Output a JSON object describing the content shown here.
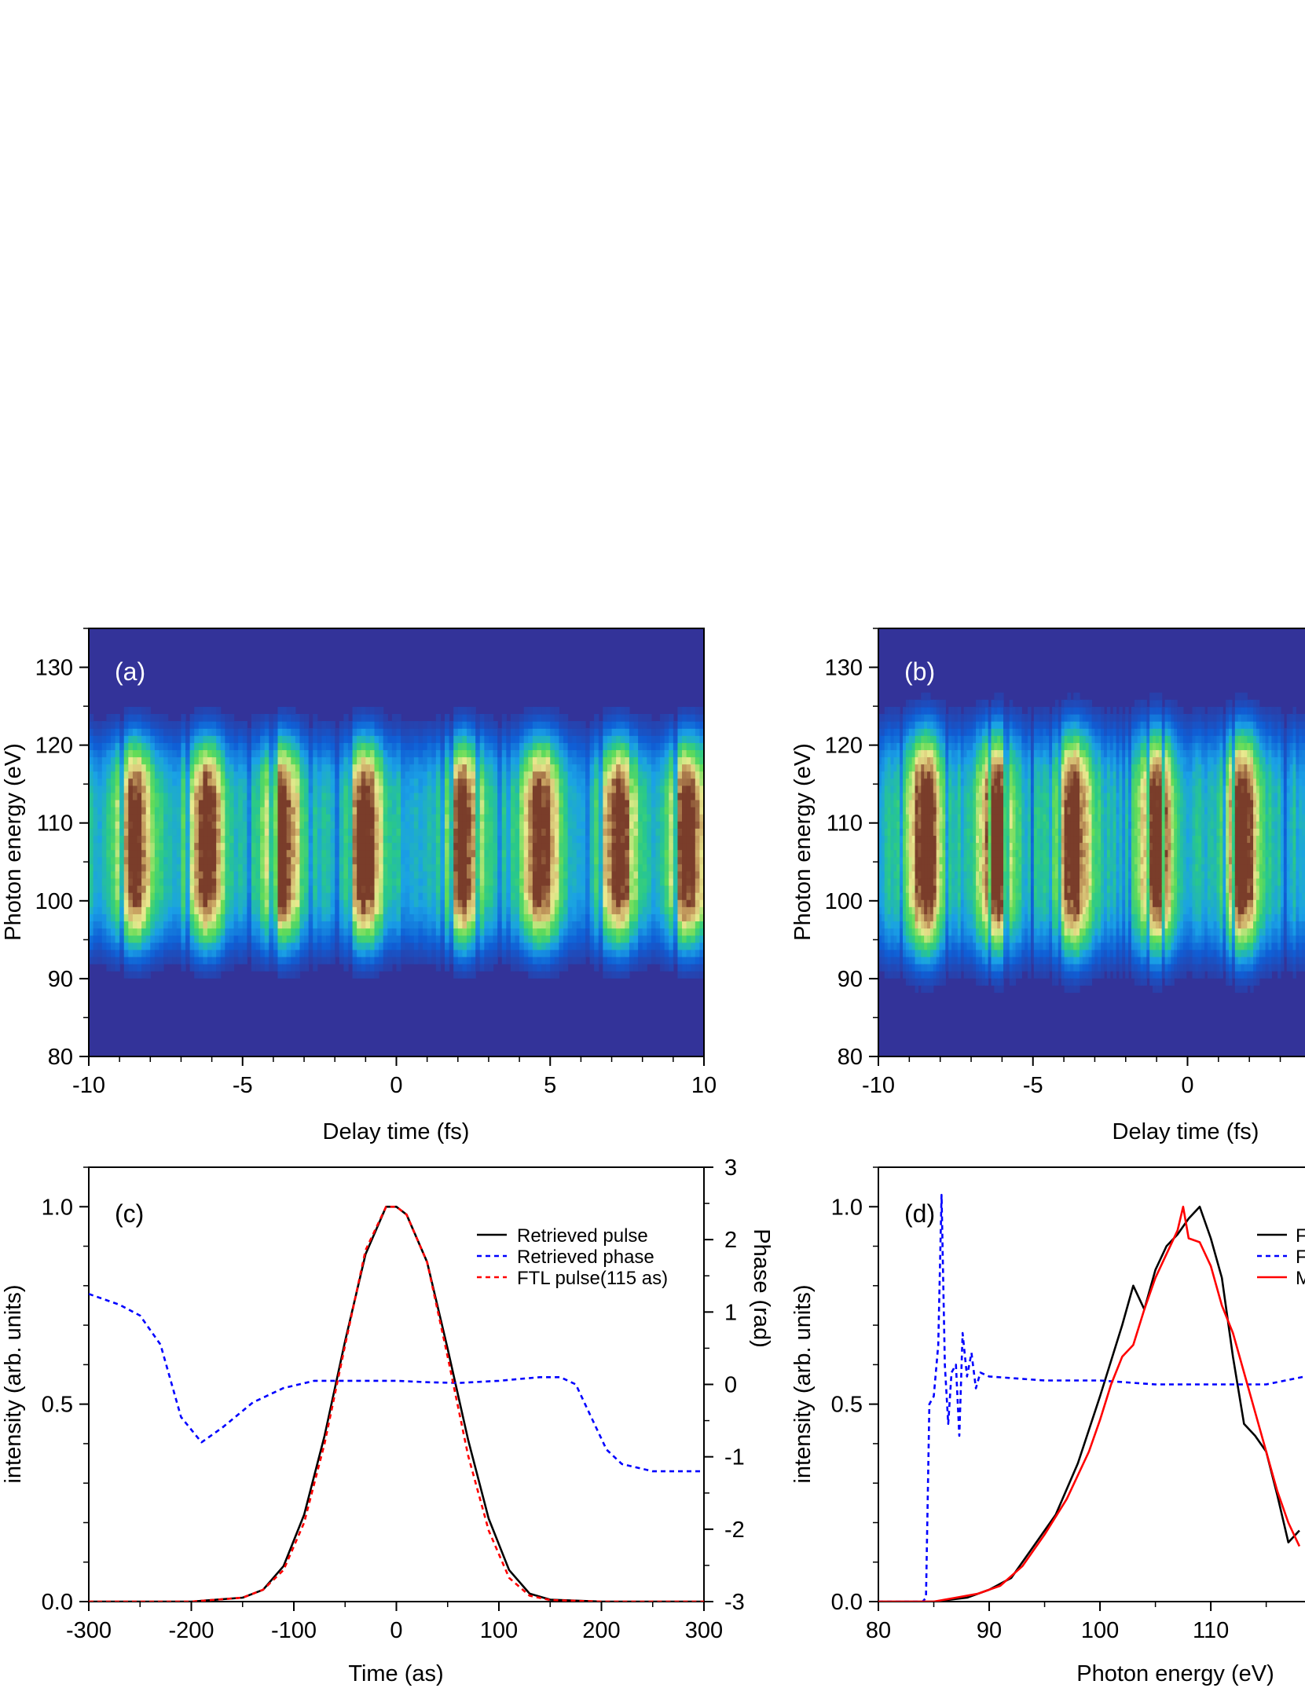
{
  "colors": {
    "bg": "#333399",
    "retrieved_pulse": "#000000",
    "retrieved_phase": "#0000ff",
    "ftl_pulse": "#ff0000",
    "measured": "#ff0000"
  },
  "chart_data": [
    {
      "id": "a",
      "type": "heatmap",
      "panel_label": "(a)",
      "xlabel": "Delay time (fs)",
      "ylabel": "Photon energy (eV)",
      "xlim": [
        -10,
        10
      ],
      "ylim": [
        80,
        135
      ],
      "xticks": [
        -10,
        -5,
        0,
        5,
        10
      ],
      "yticks": [
        80,
        90,
        100,
        110,
        120,
        130
      ],
      "colormap": [
        "#333399",
        "#0f5fd6",
        "#1aa1e6",
        "#29c98a",
        "#63dc57",
        "#e9ea8f",
        "#c7a060",
        "#7a3d2a"
      ],
      "band_center_eV": 107.5,
      "band_halfwidth_eV": 13,
      "strong_peaks_fs": [
        -8.5,
        -6.2,
        -3.7,
        -1.0,
        2.2,
        4.7,
        7.2,
        9.5
      ]
    },
    {
      "id": "b",
      "type": "heatmap",
      "panel_label": "(b)",
      "xlabel": "Delay time (fs)",
      "ylabel": "Photon energy (eV)",
      "xlim": [
        -10,
        3.8
      ],
      "ylim": [
        80,
        135
      ],
      "xticks": [
        -10,
        -5,
        0
      ],
      "yticks": [
        80,
        90,
        100,
        110,
        120,
        130
      ],
      "band_center_eV": 107.5,
      "band_halfwidth_eV": 14,
      "strong_peaks_fs": [
        -8.5,
        -6.2,
        -3.7,
        -1.0,
        1.8
      ]
    },
    {
      "id": "c",
      "type": "line",
      "panel_label": "(c)",
      "xlabel": "Time (as)",
      "ylabel": "intensity (arb. units)",
      "y2label": "Phase (rad)",
      "xlim": [
        -300,
        300
      ],
      "ylim": [
        0,
        1.1
      ],
      "y2lim": [
        -3,
        3
      ],
      "xticks": [
        -300,
        -200,
        -100,
        0,
        100,
        200,
        300
      ],
      "yticks": [
        "0.0",
        "0.5",
        "1.0"
      ],
      "y2ticks": [
        -3,
        -2,
        -1,
        0,
        1,
        2,
        3
      ],
      "legend": [
        "Retrieved pulse",
        "Retrieved phase",
        "FTL pulse(115 as)"
      ],
      "legend_position": "top-right",
      "series": [
        {
          "name": "Retrieved pulse",
          "axis": "left",
          "x": [
            -300,
            -200,
            -150,
            -130,
            -110,
            -90,
            -70,
            -50,
            -30,
            -10,
            0,
            10,
            30,
            50,
            70,
            90,
            110,
            130,
            150,
            200,
            300
          ],
          "y": [
            0,
            0.0,
            0.01,
            0.03,
            0.09,
            0.22,
            0.42,
            0.66,
            0.88,
            1.0,
            1.0,
            0.98,
            0.86,
            0.64,
            0.41,
            0.21,
            0.08,
            0.02,
            0.005,
            0,
            0
          ]
        },
        {
          "name": "Retrieved phase",
          "axis": "right",
          "x": [
            -300,
            -270,
            -250,
            -230,
            -210,
            -190,
            -170,
            -140,
            -110,
            -80,
            -50,
            -20,
            0,
            30,
            60,
            100,
            140,
            160,
            175,
            190,
            205,
            220,
            250,
            300
          ],
          "y": [
            1.25,
            1.1,
            0.95,
            0.55,
            -0.45,
            -0.8,
            -0.6,
            -0.25,
            -0.05,
            0.05,
            0.05,
            0.05,
            0.05,
            0.03,
            0.02,
            0.05,
            0.1,
            0.1,
            0.0,
            -0.45,
            -0.9,
            -1.1,
            -1.2,
            -1.2
          ]
        },
        {
          "name": "FTL pulse(115 as)",
          "axis": "left",
          "x": [
            -300,
            -200,
            -150,
            -130,
            -110,
            -90,
            -70,
            -50,
            -30,
            -10,
            0,
            10,
            30,
            50,
            70,
            90,
            110,
            130,
            150,
            200,
            300
          ],
          "y": [
            0,
            0.0,
            0.01,
            0.03,
            0.08,
            0.2,
            0.4,
            0.65,
            0.89,
            1.0,
            1.0,
            0.98,
            0.86,
            0.62,
            0.37,
            0.18,
            0.06,
            0.015,
            0.004,
            0,
            0
          ]
        }
      ]
    },
    {
      "id": "d",
      "type": "line",
      "panel_label": "(d)",
      "xlabel": "Photon energy (eV)",
      "ylabel": "intensity (arb. units)",
      "xlim": [
        80,
        118.5
      ],
      "ylim": [
        0,
        1.1
      ],
      "xticks": [
        80,
        90,
        100,
        110
      ],
      "yticks": [
        "0.0",
        "0.5",
        "1.0"
      ],
      "legend_fragments": [
        "F",
        "F",
        "M"
      ],
      "legend_position": "top-right",
      "series": [
        {
          "color_key": "retrieved_pulse",
          "x": [
            80,
            85,
            88,
            90,
            92,
            94,
            96,
            98,
            100,
            102,
            103,
            104,
            105,
            106,
            107,
            108,
            109,
            110,
            111,
            112,
            113,
            114,
            115,
            116,
            117,
            118
          ],
          "y": [
            0,
            0,
            0.01,
            0.03,
            0.06,
            0.14,
            0.22,
            0.35,
            0.52,
            0.7,
            0.8,
            0.74,
            0.84,
            0.9,
            0.93,
            0.97,
            1.0,
            0.92,
            0.82,
            0.62,
            0.45,
            0.42,
            0.38,
            0.27,
            0.15,
            0.18
          ]
        },
        {
          "color_key": "retrieved_phase",
          "x": [
            80,
            84,
            84.3,
            84.6,
            85,
            85.4,
            85.7,
            86.0,
            86.3,
            86.6,
            87.0,
            87.3,
            87.6,
            88.0,
            88.4,
            88.8,
            89.2,
            90,
            95,
            100,
            105,
            110,
            115,
            118.5
          ],
          "y": [
            0,
            0,
            0.01,
            0.5,
            0.52,
            0.65,
            1.03,
            0.6,
            0.45,
            0.58,
            0.6,
            0.42,
            0.68,
            0.57,
            0.63,
            0.54,
            0.58,
            0.57,
            0.56,
            0.56,
            0.55,
            0.55,
            0.55,
            0.57
          ]
        },
        {
          "color_key": "measured",
          "x": [
            80,
            85,
            87,
            89,
            91,
            93,
            95,
            97,
            99,
            100,
            101,
            102,
            103,
            104,
            105,
            106,
            107,
            107.5,
            108,
            109,
            110,
            111,
            112,
            113,
            114,
            115,
            116,
            117,
            118
          ],
          "y": [
            0,
            0,
            0.01,
            0.02,
            0.04,
            0.09,
            0.17,
            0.26,
            0.38,
            0.46,
            0.55,
            0.62,
            0.65,
            0.74,
            0.82,
            0.88,
            0.94,
            1.0,
            0.92,
            0.91,
            0.85,
            0.75,
            0.68,
            0.58,
            0.48,
            0.38,
            0.28,
            0.2,
            0.14
          ]
        }
      ]
    }
  ]
}
